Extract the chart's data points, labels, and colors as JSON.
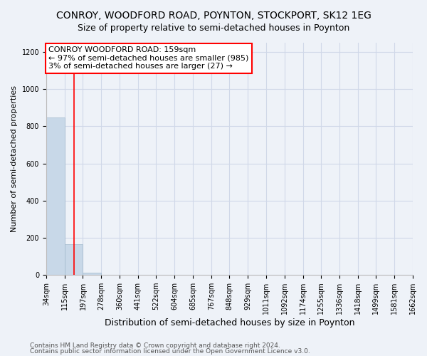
{
  "title1": "CONROY, WOODFORD ROAD, POYNTON, STOCKPORT, SK12 1EG",
  "title2": "Size of property relative to semi-detached houses in Poynton",
  "xlabel": "Distribution of semi-detached houses by size in Poynton",
  "ylabel": "Number of semi-detached properties",
  "footnote1": "Contains HM Land Registry data © Crown copyright and database right 2024.",
  "footnote2": "Contains public sector information licensed under the Open Government Licence v3.0.",
  "annotation_title": "CONROY WOODFORD ROAD: 159sqm",
  "annotation_line2": "← 97% of semi-detached houses are smaller (985)",
  "annotation_line3": "3% of semi-detached houses are larger (27) →",
  "bar_edges": [
    34,
    115,
    197,
    278,
    360,
    441,
    522,
    604,
    685,
    767,
    848,
    929,
    1011,
    1092,
    1174,
    1255,
    1336,
    1418,
    1499,
    1581,
    1662
  ],
  "bar_heights": [
    846,
    166,
    10,
    0,
    0,
    0,
    0,
    0,
    0,
    0,
    0,
    0,
    0,
    0,
    0,
    0,
    0,
    0,
    0,
    0
  ],
  "bar_color": "#c8d8e8",
  "bar_edge_color": "#a0b8cc",
  "red_line_x": 159,
  "ylim": [
    0,
    1250
  ],
  "yticks": [
    0,
    200,
    400,
    600,
    800,
    1000,
    1200
  ],
  "tick_labels": [
    "34sqm",
    "115sqm",
    "197sqm",
    "278sqm",
    "360sqm",
    "441sqm",
    "522sqm",
    "604sqm",
    "685sqm",
    "767sqm",
    "848sqm",
    "929sqm",
    "1011sqm",
    "1092sqm",
    "1174sqm",
    "1255sqm",
    "1336sqm",
    "1418sqm",
    "1499sqm",
    "1581sqm",
    "1662sqm"
  ],
  "bg_color": "#eef2f8",
  "plot_bg_color": "#eef2f8",
  "grid_color": "#d0d8e8",
  "title1_fontsize": 10,
  "title2_fontsize": 9,
  "xlabel_fontsize": 9,
  "ylabel_fontsize": 8,
  "footnote_fontsize": 6.5,
  "tick_fontsize": 7,
  "annotation_fontsize": 8
}
